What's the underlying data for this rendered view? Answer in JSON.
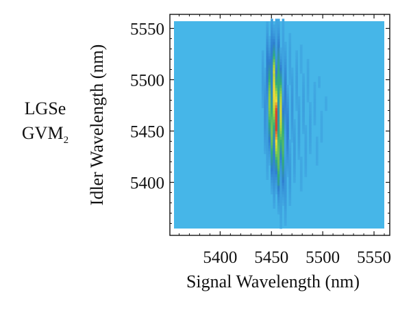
{
  "side_label": {
    "line1": "LGSe",
    "line2_main": "GVM",
    "line2_sub": "2"
  },
  "chart_data": {
    "type": "heatmap",
    "title": "",
    "xlabel": "Signal Wavelength (nm)",
    "ylabel": "Idler Wavelength (nm)",
    "xlim": [
      5355,
      5560
    ],
    "ylim": [
      5355,
      5557
    ],
    "xticks": [
      5400,
      5450,
      5500,
      5550
    ],
    "yticks": [
      5400,
      5450,
      5500,
      5550
    ],
    "colormap": [
      "#46b6e8",
      "#2f7fd0",
      "#32ae7a",
      "#a6d63a",
      "#f3d838",
      "#d8452c"
    ],
    "background_color": "#46b6e8",
    "peak": {
      "x": 5453,
      "y": 5465,
      "value": 1.0
    },
    "ridge_slope_dx_dy": -0.04,
    "fringe_period_x": 5.5,
    "main_lobe_halfwidth_x": 7,
    "main_lobe_halfheight_y": 55,
    "grid": false,
    "legend": "none"
  }
}
